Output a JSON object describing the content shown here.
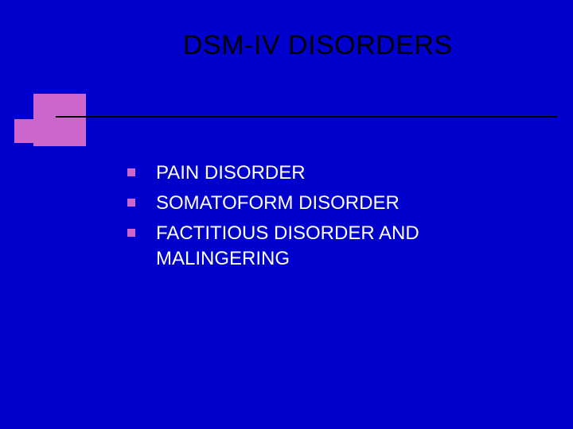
{
  "slide": {
    "title": "DSM-IV DISORDERS",
    "background_color": "#0000cc",
    "title_color": "#000000",
    "title_fontsize": 34,
    "accent_color": "#cc66cc",
    "rule_color": "#000000",
    "body_text_color": "#ffffff",
    "body_fontsize": 24,
    "bullets": [
      {
        "text": "PAIN DISORDER"
      },
      {
        "text": "SOMATOFORM DISORDER"
      },
      {
        "text": "FACTITIOUS DISORDER AND MALINGERING"
      }
    ]
  }
}
